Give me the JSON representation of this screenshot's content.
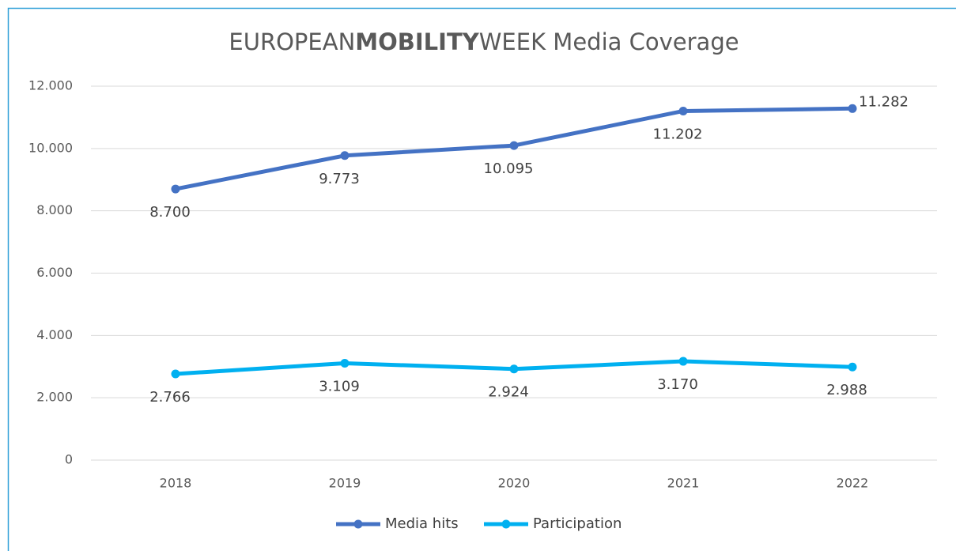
{
  "chart_data": {
    "type": "line",
    "title": [
      "EUROPEAN",
      "MOBILITY",
      "WEEK Media Coverage"
    ],
    "title_bold": [
      false,
      true,
      false
    ],
    "categories": [
      "2018",
      "2019",
      "2020",
      "2021",
      "2022"
    ],
    "series": [
      {
        "name": "Media hits",
        "color": "#4472c4",
        "values": [
          8700,
          9773,
          10095,
          11202,
          11282
        ],
        "value_labels": [
          "8.700",
          "9.773",
          "10.095",
          "11.202",
          "11.282"
        ]
      },
      {
        "name": "Participation",
        "color": "#00b0f0",
        "values": [
          2766,
          3109,
          2924,
          3170,
          2988
        ],
        "value_labels": [
          "2.766",
          "3.109",
          "2.924",
          "3.170",
          "2.988"
        ]
      }
    ],
    "ylim": [
      0,
      12000
    ],
    "yticks": [
      0,
      {
        "value": 2000,
        "label": "2.000"
      },
      {
        "value": 4000,
        "label": "4.000"
      },
      {
        "value": 6000,
        "label": "6.000"
      },
      {
        "value": 8000,
        "label": "8.000"
      },
      {
        "value": 10000,
        "label": "10.000"
      },
      {
        "value": 12000,
        "label": "12.000"
      }
    ],
    "grid": true,
    "legend": "bottom"
  }
}
